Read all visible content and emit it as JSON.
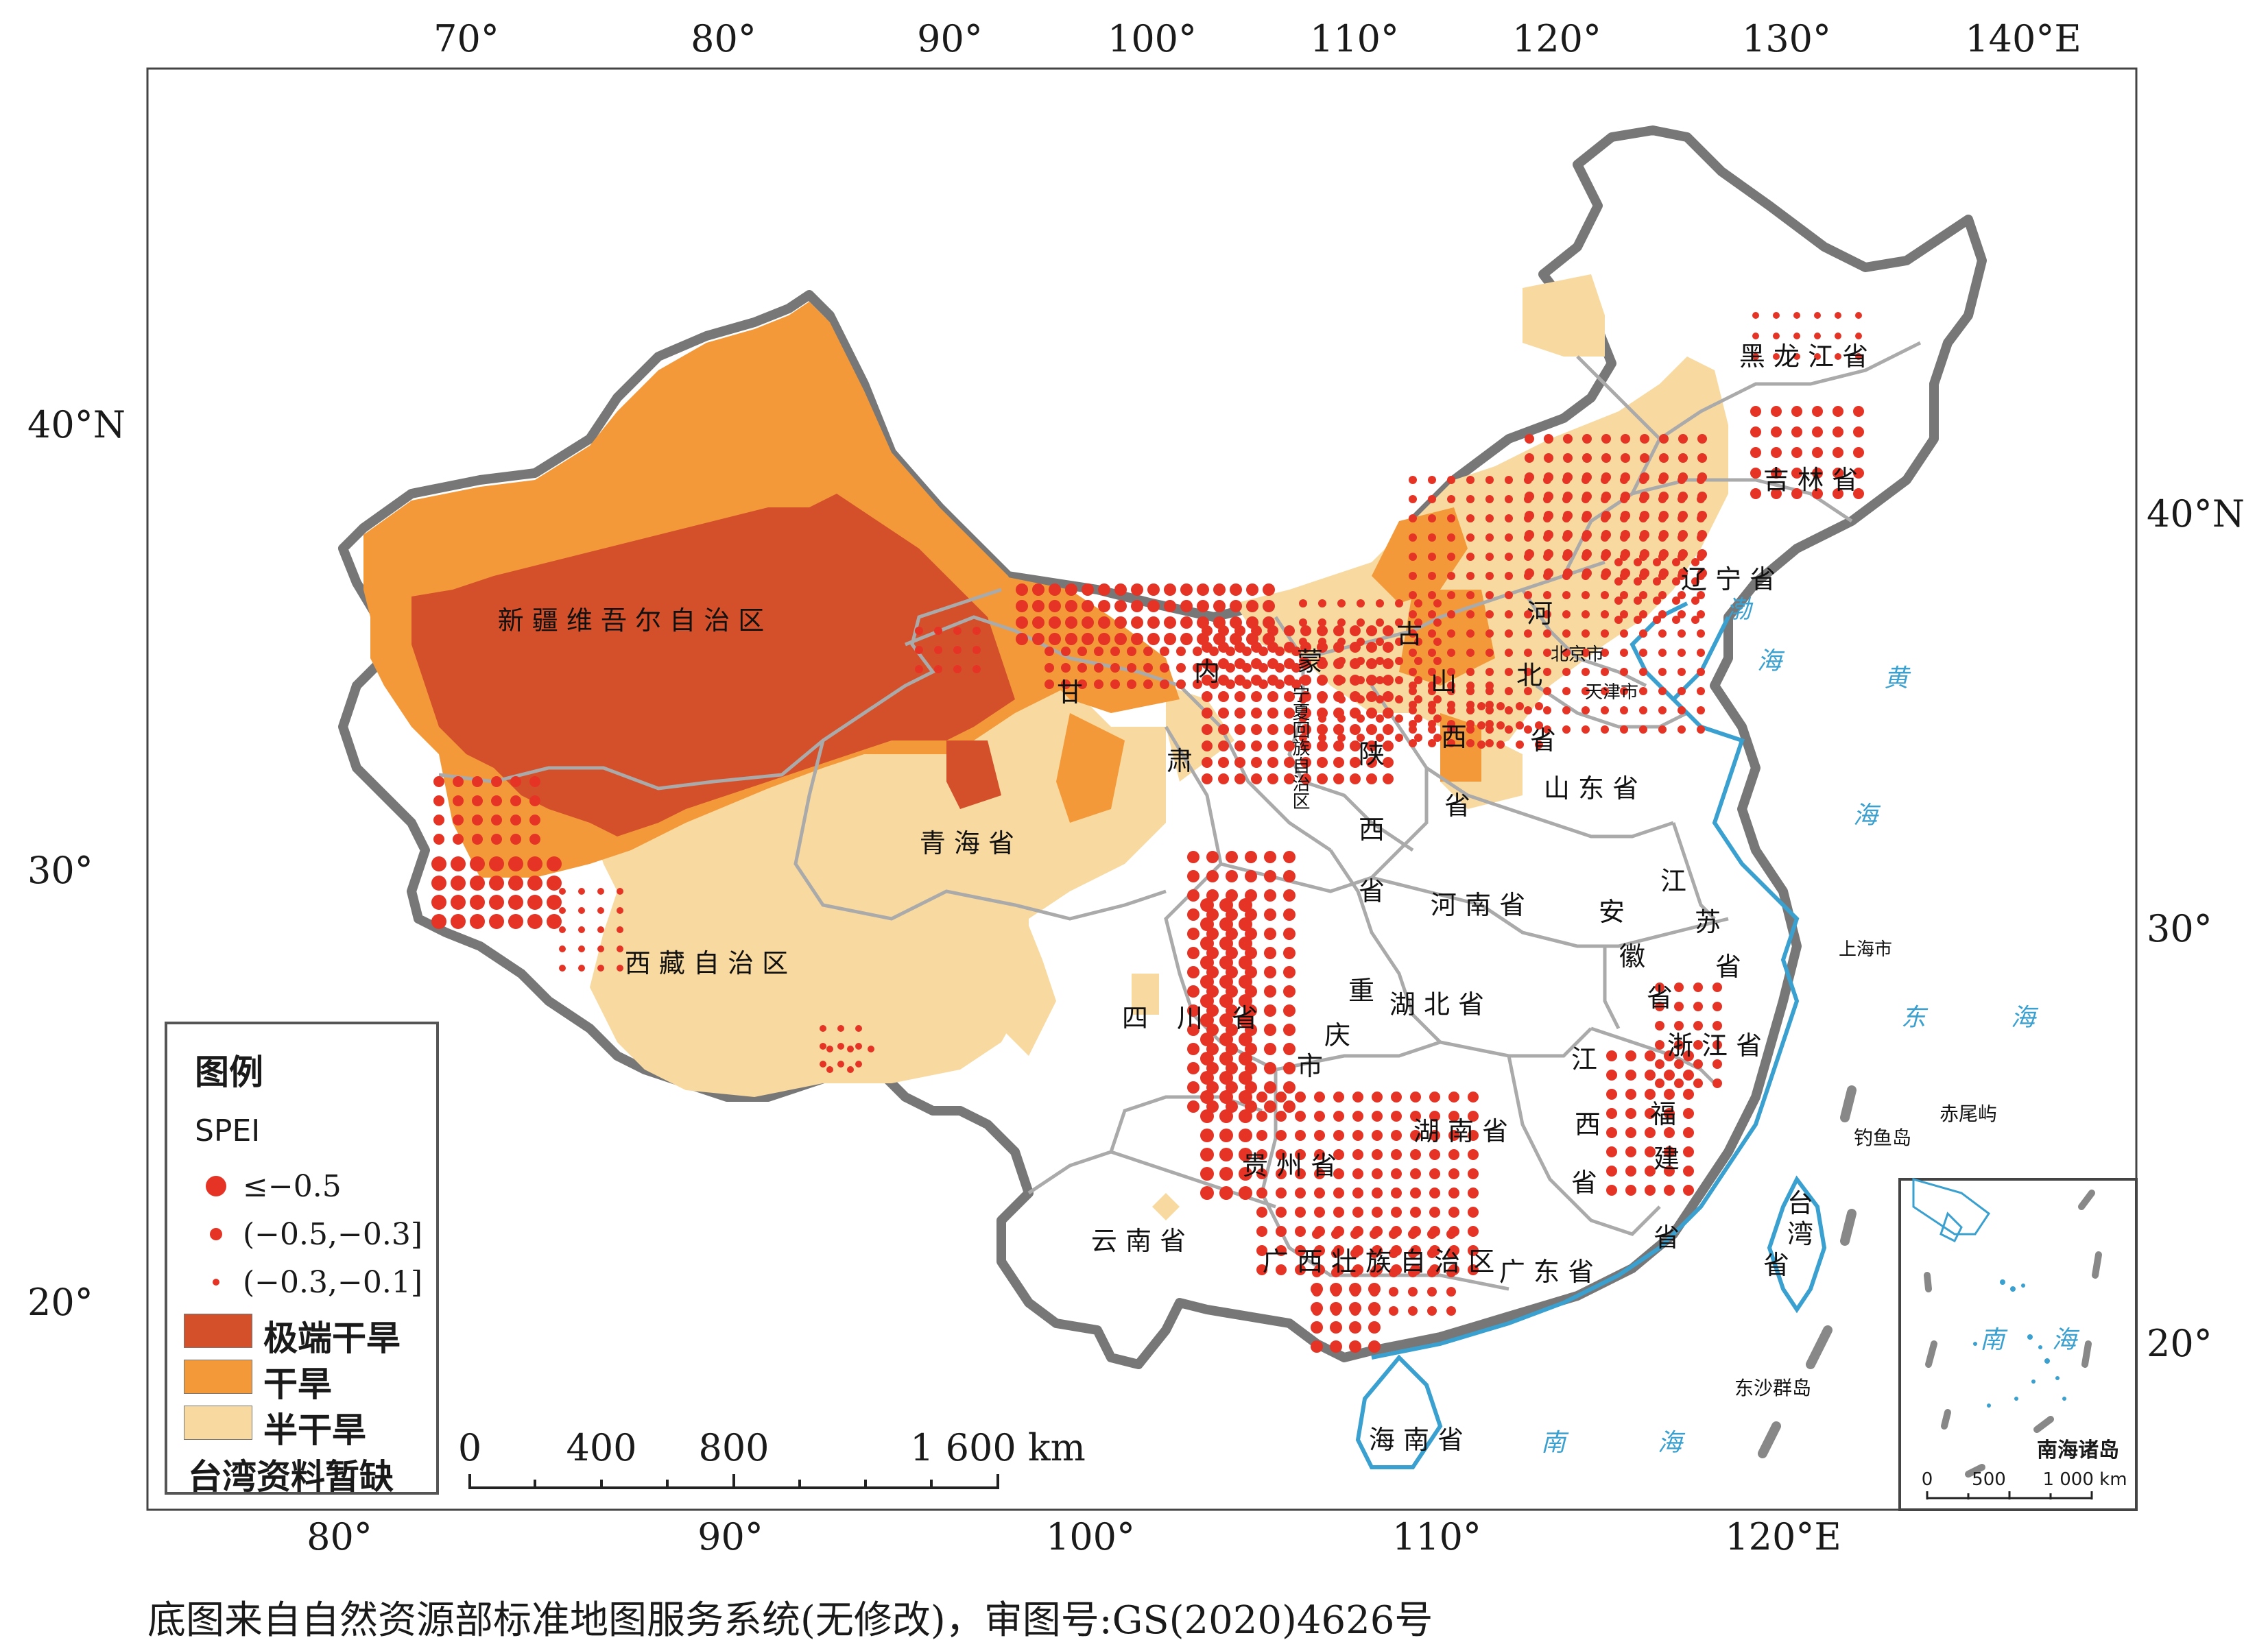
{
  "top_ticks": [
    "70°",
    "80°",
    "90°",
    "100°",
    "110°",
    "120°",
    "130°",
    "140°E"
  ],
  "bottom_ticks": [
    "80°",
    "90°",
    "100°",
    "110°",
    "120°E"
  ],
  "left_ticks": [
    "40°N",
    "30°",
    "20°"
  ],
  "right_ticks": [
    "40°N",
    "30°",
    "20°"
  ],
  "provinces": [
    "新 疆 维 吾 尔 自 治 区",
    "西 藏 自 治 区",
    "青 海 省",
    "甘",
    "肃",
    "内",
    "蒙",
    "古",
    "宁夏回族自治区",
    "陕",
    "西",
    "省",
    "山",
    "西",
    "省",
    "河",
    "北",
    "省",
    "北京市",
    "天津市",
    "辽 宁 省",
    "吉 林 省",
    "黑 龙 江 省",
    "山 东 省",
    "河 南 省",
    "江",
    "苏",
    "省",
    "安",
    "徽",
    "省",
    "上海市",
    "湖 北 省",
    "重",
    "庆",
    "市",
    "四",
    "川",
    "省",
    "浙 江 省",
    "江",
    "西",
    "省",
    "湖 南 省",
    "贵 州 省",
    "福",
    "建",
    "省",
    "台",
    "湾",
    "省",
    "云 南 省",
    "广 西 壮 族 自 治 区",
    "广 东 省",
    "海 南 省"
  ],
  "seas": [
    "渤",
    "海",
    "黄",
    "海",
    "东",
    "海",
    "南",
    "海",
    "南",
    "海"
  ],
  "islands": [
    "钓鱼岛",
    "赤尾屿",
    "东沙群岛"
  ],
  "legend": {
    "title": "图例",
    "index_name": "SPEI",
    "dot_classes": [
      "≤−0.5",
      "(−0.5,−0.3]",
      "(−0.3,−0.1]"
    ],
    "area_classes": [
      "极端干旱",
      "干旱",
      "半干旱"
    ],
    "note": "台湾资料暂缺"
  },
  "scale_bar": {
    "labels": [
      "0",
      "400",
      "800",
      "1 600 km"
    ]
  },
  "inset": {
    "title": "南海诸岛",
    "scale_labels": [
      "0",
      "500",
      "1 000 km"
    ],
    "sea_labels": [
      "南",
      "海"
    ]
  },
  "footer": "底图来自自然资源部标准地图服务系统(无修改)，审图号:GS(2020)4626号",
  "colors": {
    "extreme_arid": "#d4502a",
    "arid": "#f4993a",
    "semi_arid": "#f8d9a0",
    "spei_dot": "#e53425",
    "border": "#777777",
    "province_line": "#aaaaaa",
    "coast": "#3aa0cf"
  }
}
